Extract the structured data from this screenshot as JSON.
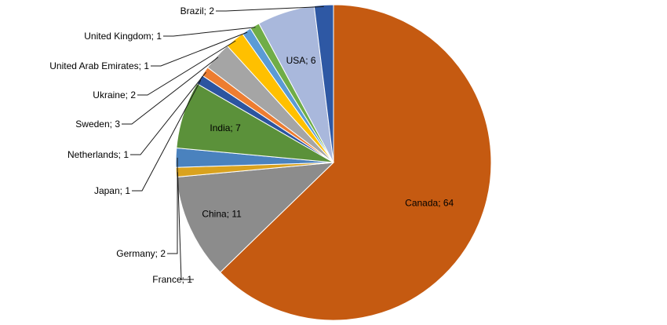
{
  "chart_data": {
    "type": "pie",
    "title": "",
    "separator": "; ",
    "slices": [
      {
        "label": "Canada",
        "value": 64,
        "color": "#C55A11",
        "label_pos": "inside"
      },
      {
        "label": "China",
        "value": 11,
        "color": "#8C8C8C",
        "label_pos": "inside"
      },
      {
        "label": "France",
        "value": 1,
        "color": "#D9A21E",
        "label_pos": "outside"
      },
      {
        "label": "Germany",
        "value": 2,
        "color": "#4A82BE",
        "label_pos": "outside"
      },
      {
        "label": "India",
        "value": 7,
        "color": "#5B913A",
        "label_pos": "inside"
      },
      {
        "label": "Japan",
        "value": 1,
        "color": "#2C55A0",
        "label_pos": "outside"
      },
      {
        "label": "Netherlands",
        "value": 1,
        "color": "#ED7D31",
        "label_pos": "outside"
      },
      {
        "label": "Sweden",
        "value": 3,
        "color": "#A5A5A5",
        "label_pos": "outside"
      },
      {
        "label": "Ukraine",
        "value": 2,
        "color": "#FFC000",
        "label_pos": "outside"
      },
      {
        "label": "United Arab Emirates",
        "value": 1,
        "color": "#5B9BD5",
        "label_pos": "outside"
      },
      {
        "label": "United Kingdom",
        "value": 1,
        "color": "#70AD47",
        "label_pos": "outside"
      },
      {
        "label": "USA",
        "value": 6,
        "color": "#A9B8DC",
        "label_pos": "inside"
      },
      {
        "label": "Brazil",
        "value": 2,
        "color": "#2E58A4",
        "label_pos": "outside"
      }
    ]
  }
}
